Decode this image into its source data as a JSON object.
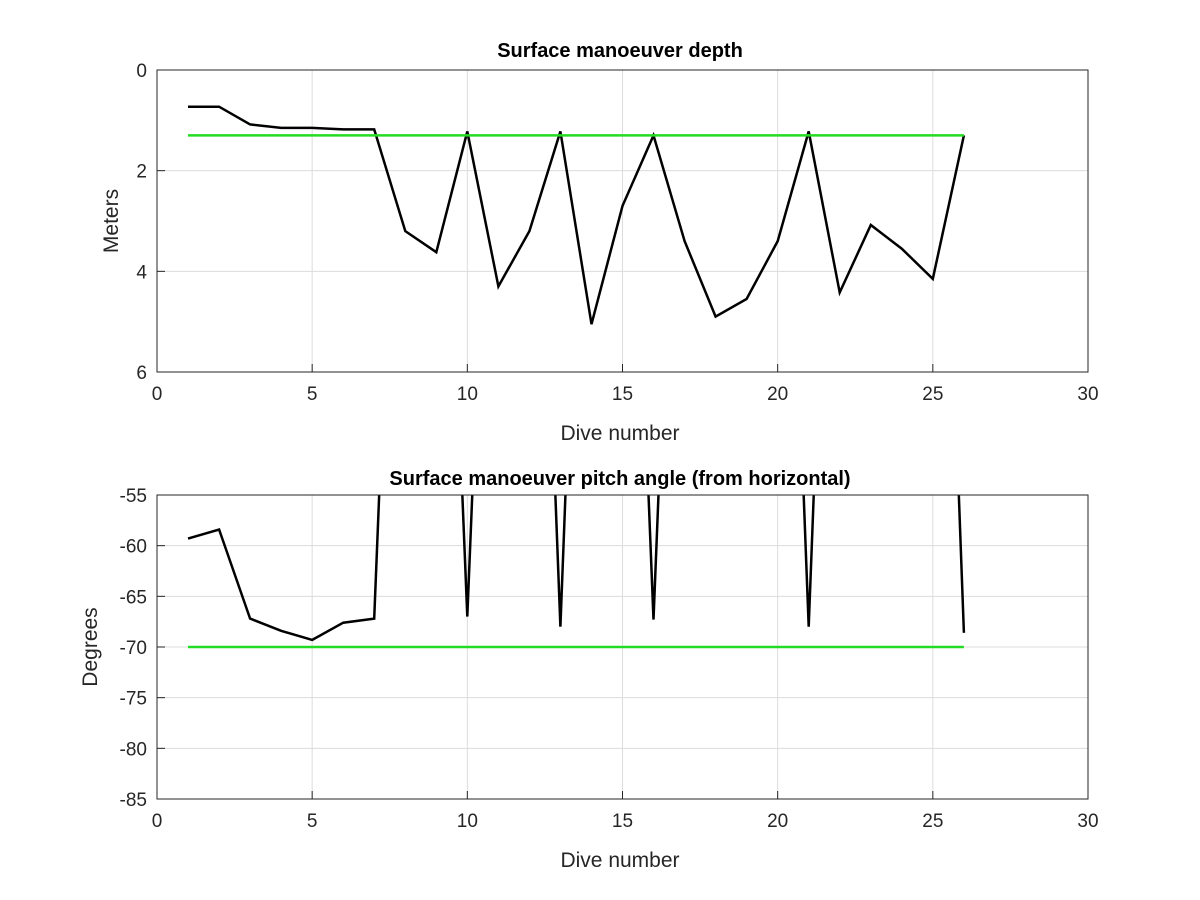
{
  "chart_data": [
    {
      "type": "line",
      "title": "Surface manoeuver depth",
      "xlabel": "Dive number",
      "ylabel": "Meters",
      "xlim": [
        0,
        30
      ],
      "ylim": [
        0,
        6
      ],
      "y_reversed": true,
      "grid": true,
      "x_ticks": [
        "0",
        "5",
        "10",
        "15",
        "20",
        "25",
        "30"
      ],
      "y_ticks": [
        "0",
        "2",
        "4",
        "6"
      ],
      "series": [
        {
          "color": "#000000",
          "x": [
            1,
            2,
            3,
            4,
            5,
            6,
            7,
            8,
            9,
            10,
            11,
            12,
            13,
            14,
            15,
            16,
            17,
            18,
            19,
            20,
            21,
            22,
            23,
            24,
            25,
            26
          ],
          "y": [
            0.73,
            0.73,
            1.08,
            1.15,
            1.15,
            1.18,
            1.18,
            3.2,
            3.62,
            1.22,
            4.3,
            3.2,
            1.22,
            5.05,
            2.7,
            1.3,
            3.4,
            4.9,
            4.55,
            3.4,
            1.22,
            4.42,
            3.08,
            3.55,
            4.15,
            1.3
          ]
        },
        {
          "color": "#22dd22",
          "x": [
            1,
            26
          ],
          "y": [
            1.3,
            1.3
          ]
        }
      ]
    },
    {
      "type": "line",
      "title": "Surface manoeuver pitch angle (from horizontal)",
      "xlabel": "Dive number",
      "ylabel": "Degrees",
      "xlim": [
        0,
        30
      ],
      "ylim": [
        -85,
        -55
      ],
      "grid": true,
      "x_ticks": [
        "0",
        "5",
        "10",
        "15",
        "20",
        "25",
        "30"
      ],
      "y_ticks": [
        "-55",
        "-60",
        "-65",
        "-70",
        "-75",
        "-80",
        "-85"
      ],
      "series": [
        {
          "color": "#000000",
          "x": [
            1,
            2,
            3,
            4,
            5,
            6,
            7,
            7.2,
            9.8,
            10,
            10.2,
            12.8,
            13,
            13.2,
            15.8,
            16,
            16.2,
            20.8,
            21,
            21.2,
            25.8,
            26
          ],
          "y": [
            -59.3,
            -58.4,
            -67.2,
            -68.4,
            -69.3,
            -67.6,
            -67.2,
            -52,
            -52,
            -67.0,
            -52,
            -52,
            -68.0,
            -52,
            -52,
            -67.3,
            -52,
            -52,
            -68.0,
            -52,
            -52,
            -68.6
          ]
        },
        {
          "color": "#22dd22",
          "x": [
            1,
            26
          ],
          "y": [
            -70,
            -70
          ]
        }
      ]
    }
  ]
}
